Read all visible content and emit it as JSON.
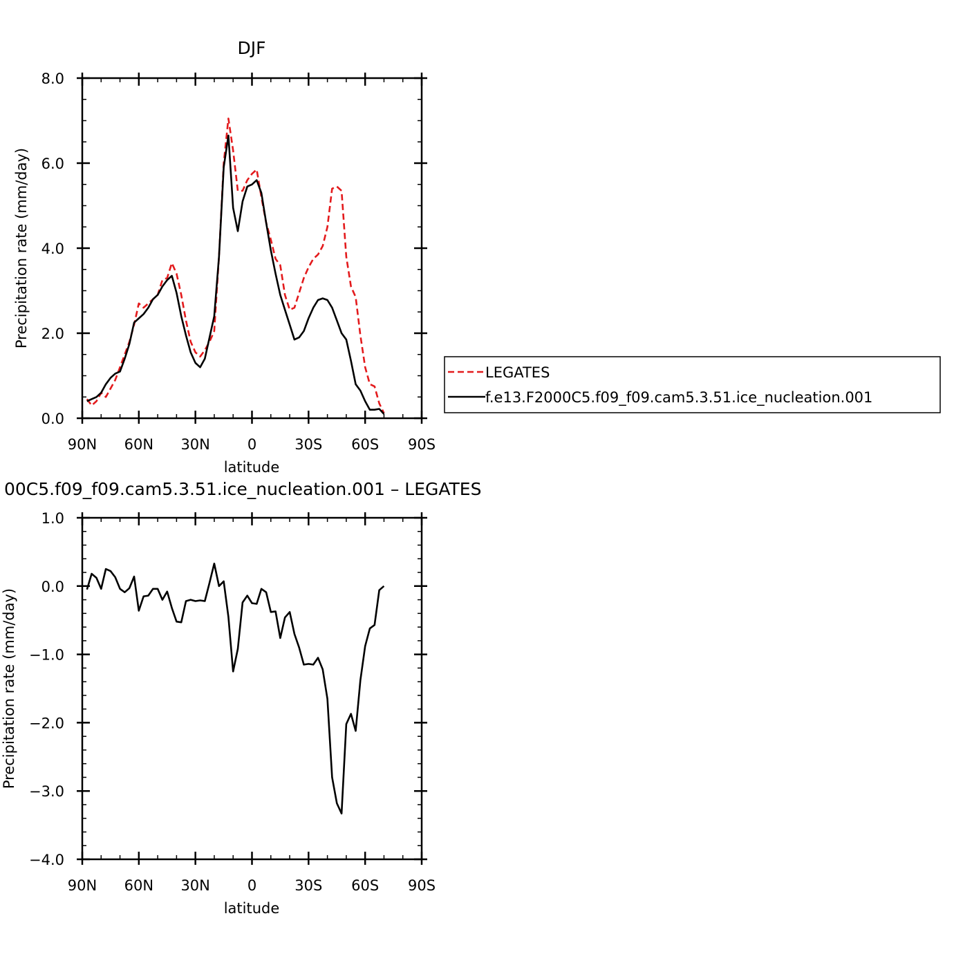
{
  "chart_data": [
    {
      "type": "line",
      "title": "DJF",
      "xlabel": "latitude",
      "ylabel": "Precipitation rate (mm/day)",
      "xlim": [
        90,
        -90
      ],
      "ylim": [
        0,
        8
      ],
      "xticks": [
        {
          "value": 90,
          "label": "90N"
        },
        {
          "value": 60,
          "label": "60N"
        },
        {
          "value": 30,
          "label": "30N"
        },
        {
          "value": 0,
          "label": "0"
        },
        {
          "value": -30,
          "label": "30S"
        },
        {
          "value": -60,
          "label": "60S"
        },
        {
          "value": -90,
          "label": "90S"
        }
      ],
      "yticks": [
        {
          "value": 0,
          "label": "0.0"
        },
        {
          "value": 2,
          "label": "2.0"
        },
        {
          "value": 4,
          "label": "4.0"
        },
        {
          "value": 6,
          "label": "6.0"
        },
        {
          "value": 8,
          "label": "8.0"
        }
      ],
      "legend": "right",
      "series": [
        {
          "name": "LEGATES",
          "color": "#e31a1c",
          "dash": "dashed",
          "points": [
            [
              87.5,
              0.45
            ],
            [
              85,
              0.3
            ],
            [
              82.5,
              0.4
            ],
            [
              80,
              0.6
            ],
            [
              77.5,
              0.5
            ],
            [
              75,
              0.7
            ],
            [
              72.5,
              0.9
            ],
            [
              70,
              1.2
            ],
            [
              67.5,
              1.5
            ],
            [
              65,
              1.8
            ],
            [
              62.5,
              2.2
            ],
            [
              60,
              2.7
            ],
            [
              57.5,
              2.6
            ],
            [
              55,
              2.7
            ],
            [
              52.5,
              2.8
            ],
            [
              50,
              2.9
            ],
            [
              47.5,
              3.25
            ],
            [
              45,
              3.3
            ],
            [
              42.5,
              3.65
            ],
            [
              40,
              3.4
            ],
            [
              37.5,
              2.9
            ],
            [
              35,
              2.3
            ],
            [
              32.5,
              1.8
            ],
            [
              30,
              1.55
            ],
            [
              27.5,
              1.45
            ],
            [
              25,
              1.6
            ],
            [
              22.5,
              1.8
            ],
            [
              20,
              2.05
            ],
            [
              17.5,
              3.8
            ],
            [
              15,
              6.0
            ],
            [
              12.5,
              7.05
            ],
            [
              10,
              6.3
            ],
            [
              7.5,
              5.35
            ],
            [
              5,
              5.35
            ],
            [
              2.5,
              5.6
            ],
            [
              0,
              5.75
            ],
            [
              -2.5,
              5.85
            ],
            [
              -5,
              5.2
            ],
            [
              -7.5,
              4.6
            ],
            [
              -10,
              4.2
            ],
            [
              -12.5,
              3.75
            ],
            [
              -15,
              3.6
            ],
            [
              -17.5,
              2.9
            ],
            [
              -20,
              2.55
            ],
            [
              -22.5,
              2.6
            ],
            [
              -25,
              2.95
            ],
            [
              -27.5,
              3.3
            ],
            [
              -30,
              3.55
            ],
            [
              -32.5,
              3.75
            ],
            [
              -35,
              3.85
            ],
            [
              -37.5,
              4.05
            ],
            [
              -40,
              4.5
            ],
            [
              -42.5,
              5.4
            ],
            [
              -45,
              5.45
            ],
            [
              -47.5,
              5.35
            ],
            [
              -50,
              3.8
            ],
            [
              -52.5,
              3.1
            ],
            [
              -55,
              2.85
            ],
            [
              -57.5,
              1.95
            ],
            [
              -60,
              1.2
            ],
            [
              -62.5,
              0.8
            ],
            [
              -65,
              0.75
            ],
            [
              -67.5,
              0.35
            ],
            [
              -70,
              0.12
            ]
          ]
        },
        {
          "name": "f.e13.F2000C5.f09_f09.cam5.3.51.ice_nucleation.001",
          "color": "#000000",
          "dash": "solid",
          "points": [
            [
              87.5,
              0.4
            ],
            [
              85,
              0.45
            ],
            [
              82.5,
              0.5
            ],
            [
              80,
              0.6
            ],
            [
              77.5,
              0.8
            ],
            [
              75,
              0.95
            ],
            [
              72.5,
              1.05
            ],
            [
              70,
              1.1
            ],
            [
              67.5,
              1.4
            ],
            [
              65,
              1.75
            ],
            [
              62.5,
              2.25
            ],
            [
              60,
              2.35
            ],
            [
              57.5,
              2.45
            ],
            [
              55,
              2.6
            ],
            [
              52.5,
              2.8
            ],
            [
              50,
              2.9
            ],
            [
              47.5,
              3.1
            ],
            [
              45,
              3.25
            ],
            [
              42.5,
              3.35
            ],
            [
              40,
              2.95
            ],
            [
              37.5,
              2.4
            ],
            [
              35,
              1.95
            ],
            [
              32.5,
              1.55
            ],
            [
              30,
              1.3
            ],
            [
              27.5,
              1.2
            ],
            [
              25,
              1.4
            ],
            [
              22.5,
              1.9
            ],
            [
              20,
              2.4
            ],
            [
              17.5,
              3.8
            ],
            [
              15,
              5.9
            ],
            [
              12.5,
              6.65
            ],
            [
              10,
              4.95
            ],
            [
              7.5,
              4.4
            ],
            [
              5,
              5.1
            ],
            [
              2.5,
              5.45
            ],
            [
              0,
              5.5
            ],
            [
              -2.5,
              5.6
            ],
            [
              -5,
              5.3
            ],
            [
              -7.5,
              4.6
            ],
            [
              -10,
              3.95
            ],
            [
              -12.5,
              3.4
            ],
            [
              -15,
              2.9
            ],
            [
              -17.5,
              2.55
            ],
            [
              -20,
              2.2
            ],
            [
              -22.5,
              1.85
            ],
            [
              -25,
              1.9
            ],
            [
              -27.5,
              2.05
            ],
            [
              -30,
              2.35
            ],
            [
              -32.5,
              2.6
            ],
            [
              -35,
              2.78
            ],
            [
              -37.5,
              2.82
            ],
            [
              -40,
              2.78
            ],
            [
              -42.5,
              2.6
            ],
            [
              -45,
              2.3
            ],
            [
              -47.5,
              2.0
            ],
            [
              -50,
              1.85
            ],
            [
              -52.5,
              1.35
            ],
            [
              -55,
              0.8
            ],
            [
              -57.5,
              0.65
            ],
            [
              -60,
              0.4
            ],
            [
              -62.5,
              0.2
            ],
            [
              -65,
              0.2
            ],
            [
              -67.5,
              0.22
            ],
            [
              -70,
              0.1
            ]
          ]
        }
      ]
    },
    {
      "type": "line",
      "title": "00C5.f09_f09.cam5.3.51.ice_nucleation.001 – LEGATES",
      "xlabel": "latitude",
      "ylabel": "Precipitation rate (mm/day)",
      "xlim": [
        90,
        -90
      ],
      "ylim": [
        -4,
        1
      ],
      "xticks": [
        {
          "value": 90,
          "label": "90N"
        },
        {
          "value": 60,
          "label": "60N"
        },
        {
          "value": 30,
          "label": "30N"
        },
        {
          "value": 0,
          "label": "0"
        },
        {
          "value": -30,
          "label": "30S"
        },
        {
          "value": -60,
          "label": "60S"
        },
        {
          "value": -90,
          "label": "90S"
        }
      ],
      "yticks": [
        {
          "value": -4,
          "label": "−4.0"
        },
        {
          "value": -3,
          "label": "−3.0"
        },
        {
          "value": -2,
          "label": "−2.0"
        },
        {
          "value": -1,
          "label": "−1.0"
        },
        {
          "value": 0,
          "label": "0.0"
        },
        {
          "value": 1,
          "label": "1.0"
        }
      ],
      "series": [
        {
          "color": "#000000",
          "dash": "solid",
          "points": [
            [
              87.5,
              -0.05
            ],
            [
              85,
              0.18
            ],
            [
              82.5,
              0.12
            ],
            [
              80,
              -0.04
            ],
            [
              77.5,
              0.25
            ],
            [
              75,
              0.22
            ],
            [
              72.5,
              0.13
            ],
            [
              70,
              -0.04
            ],
            [
              67.5,
              -0.09
            ],
            [
              65,
              -0.03
            ],
            [
              62.5,
              0.14
            ],
            [
              60,
              -0.36
            ],
            [
              57.5,
              -0.15
            ],
            [
              55,
              -0.14
            ],
            [
              52.5,
              -0.04
            ],
            [
              50,
              -0.04
            ],
            [
              47.5,
              -0.2
            ],
            [
              45,
              -0.08
            ],
            [
              42.5,
              -0.32
            ],
            [
              40,
              -0.52
            ],
            [
              37.5,
              -0.53
            ],
            [
              35,
              -0.22
            ],
            [
              32.5,
              -0.2
            ],
            [
              30,
              -0.22
            ],
            [
              27.5,
              -0.21
            ],
            [
              25,
              -0.22
            ],
            [
              22.5,
              0.05
            ],
            [
              20,
              0.33
            ],
            [
              17.5,
              0.0
            ],
            [
              15,
              0.07
            ],
            [
              12.5,
              -0.45
            ],
            [
              10,
              -1.25
            ],
            [
              7.5,
              -0.92
            ],
            [
              5,
              -0.24
            ],
            [
              2.5,
              -0.14
            ],
            [
              0,
              -0.25
            ],
            [
              -2.5,
              -0.26
            ],
            [
              -5,
              -0.04
            ],
            [
              -7.5,
              -0.09
            ],
            [
              -10,
              -0.38
            ],
            [
              -12.5,
              -0.37
            ],
            [
              -15,
              -0.76
            ],
            [
              -17.5,
              -0.46
            ],
            [
              -20,
              -0.38
            ],
            [
              -22.5,
              -0.7
            ],
            [
              -25,
              -0.9
            ],
            [
              -27.5,
              -1.15
            ],
            [
              -30,
              -1.14
            ],
            [
              -32.5,
              -1.15
            ],
            [
              -35,
              -1.05
            ],
            [
              -37.5,
              -1.22
            ],
            [
              -40,
              -1.65
            ],
            [
              -42.5,
              -2.8
            ],
            [
              -45,
              -3.18
            ],
            [
              -47.5,
              -3.33
            ],
            [
              -50,
              -2.02
            ],
            [
              -52.5,
              -1.87
            ],
            [
              -55,
              -2.12
            ],
            [
              -57.5,
              -1.38
            ],
            [
              -60,
              -0.88
            ],
            [
              -62.5,
              -0.62
            ],
            [
              -65,
              -0.57
            ],
            [
              -67.5,
              -0.06
            ],
            [
              -70,
              0.0
            ]
          ]
        }
      ]
    }
  ]
}
